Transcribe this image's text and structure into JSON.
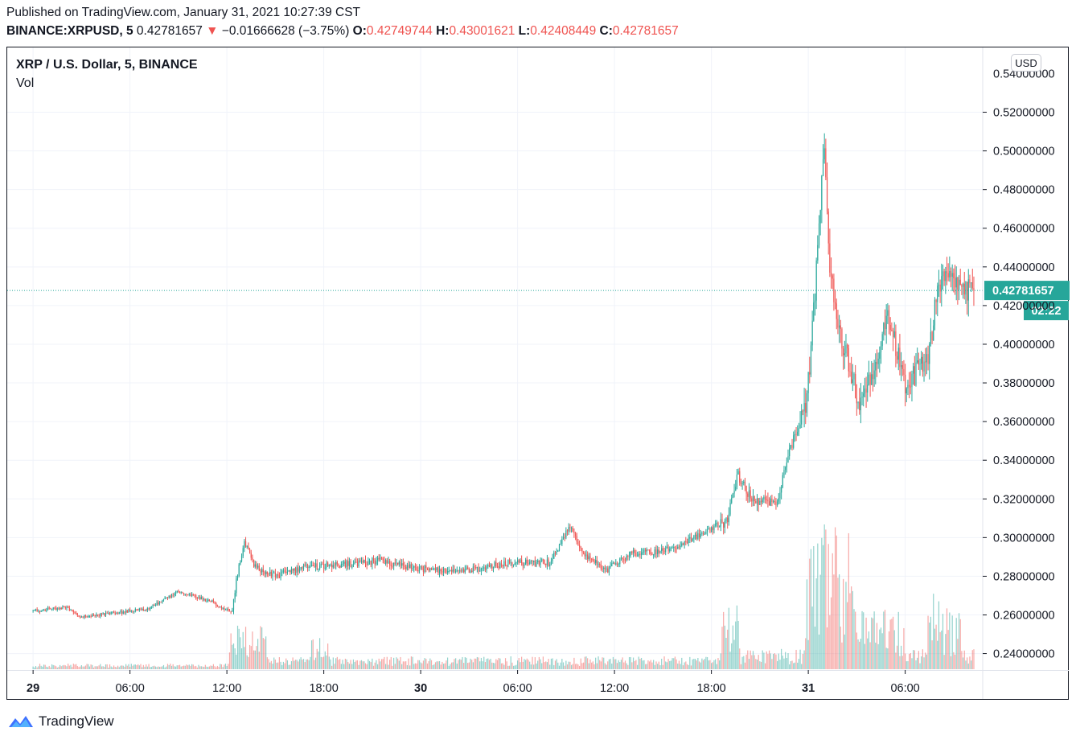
{
  "header": {
    "published": "Published on TradingView.com, January 31, 2021 10:27:39 CST",
    "symbol": "BINANCE:XRPUSD, 5",
    "last_price": "0.42781657",
    "change_arrow": "▼",
    "change": "−0.01666628 (−3.75%)",
    "o_label": "O:",
    "o_value": "0.42749744",
    "h_label": "H:",
    "h_value": "0.43001621",
    "l_label": "L:",
    "l_value": "0.42408449",
    "c_label": "C:",
    "c_value": "0.42781657"
  },
  "legend": {
    "title": "XRP / U.S. Dollar, 5, BINANCE",
    "volume": "Vol"
  },
  "currency_button": "USD",
  "last_price_label": "0.42781657",
  "countdown_label": "02:22",
  "footer": {
    "brand": "TradingView"
  },
  "colors": {
    "up": "#26a69a",
    "down": "#ef5350",
    "price_tag": "#26a69a",
    "grid": "#f0f3fa",
    "text": "#131722"
  },
  "chart_data": {
    "type": "candlestick",
    "title": "XRP / U.S. Dollar, 5, BINANCE",
    "y_tick_labels": [
      "0.52000000",
      "0.50000000",
      "0.48000000",
      "0.46000000",
      "0.44000000",
      "0.42000000",
      "0.40000000",
      "0.38000000",
      "0.36000000",
      "0.34000000",
      "0.32000000",
      "0.30000000",
      "0.28000000",
      "0.26000000",
      "0.24000000"
    ],
    "y_ticks": [
      0.52,
      0.5,
      0.48,
      0.46,
      0.44,
      0.42,
      0.4,
      0.38,
      0.36,
      0.34,
      0.32,
      0.3,
      0.28,
      0.26,
      0.24
    ],
    "ylim": [
      0.2315,
      0.5535
    ],
    "x_tick_labels": [
      "29",
      "06:00",
      "12:00",
      "18:00",
      "30",
      "06:00",
      "12:00",
      "18:00",
      "31",
      "06:00"
    ],
    "x_ticks_hours": [
      0,
      6,
      12,
      18,
      24,
      30,
      36,
      42,
      48,
      54
    ],
    "xlim_hours": [
      -1.6,
      58.8
    ],
    "last_time_hours": 58.3,
    "last_close": 0.42781657,
    "price_path": [
      [
        0.0,
        0.262
      ],
      [
        2.0,
        0.264
      ],
      [
        3.0,
        0.259
      ],
      [
        5.0,
        0.261
      ],
      [
        7.0,
        0.263
      ],
      [
        9.0,
        0.272
      ],
      [
        11.0,
        0.267
      ],
      [
        12.3,
        0.261
      ],
      [
        12.6,
        0.279
      ],
      [
        13.1,
        0.298
      ],
      [
        13.7,
        0.285
      ],
      [
        15.0,
        0.28
      ],
      [
        17.0,
        0.285
      ],
      [
        19.0,
        0.286
      ],
      [
        21.5,
        0.288
      ],
      [
        23.0,
        0.285
      ],
      [
        25.0,
        0.283
      ],
      [
        27.0,
        0.283
      ],
      [
        29.5,
        0.287
      ],
      [
        32.0,
        0.287
      ],
      [
        33.2,
        0.306
      ],
      [
        34.0,
        0.292
      ],
      [
        35.5,
        0.283
      ],
      [
        37.0,
        0.292
      ],
      [
        39.0,
        0.293
      ],
      [
        41.0,
        0.3
      ],
      [
        43.0,
        0.309
      ],
      [
        43.6,
        0.333
      ],
      [
        44.5,
        0.32
      ],
      [
        46.0,
        0.318
      ],
      [
        47.0,
        0.349
      ],
      [
        47.9,
        0.37
      ],
      [
        48.4,
        0.425
      ],
      [
        49.0,
        0.505
      ],
      [
        49.3,
        0.44
      ],
      [
        50.0,
        0.405
      ],
      [
        51.2,
        0.368
      ],
      [
        52.2,
        0.392
      ],
      [
        53.0,
        0.415
      ],
      [
        54.0,
        0.378
      ],
      [
        55.5,
        0.395
      ],
      [
        56.0,
        0.432
      ],
      [
        56.8,
        0.438
      ],
      [
        57.5,
        0.428
      ],
      [
        58.3,
        0.428
      ]
    ]
  }
}
